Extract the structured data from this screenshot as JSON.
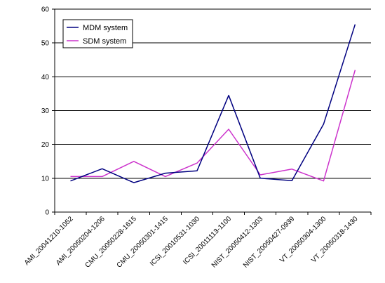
{
  "chart_data": {
    "type": "line",
    "categories": [
      "AMI_20041210-1052",
      "AMI_20050204-1206",
      "CMU_20050228-1615",
      "CMU_20050301-1415",
      "ICSI_20010531-1030",
      "ICSI_20011113-1100",
      "NIST_20050412-1303",
      "NIST_20050427-0939",
      "VT_20050304-1300",
      "VT_20050318-1430"
    ],
    "series": [
      {
        "name": "MDM system",
        "color": "#000080",
        "values": [
          9.2,
          12.8,
          8.7,
          11.5,
          12.2,
          34.5,
          10.0,
          9.3,
          26.0,
          55.5
        ]
      },
      {
        "name": "SDM system",
        "color": "#cc33cc",
        "values": [
          10.5,
          10.5,
          15.0,
          10.5,
          14.5,
          24.5,
          11.0,
          12.7,
          9.2,
          42.0
        ]
      }
    ],
    "ylim": [
      0,
      60
    ],
    "yticks": [
      "0",
      "10",
      "20",
      "30",
      "40",
      "50",
      "60"
    ],
    "grid": true,
    "legend_position": "top-left"
  }
}
